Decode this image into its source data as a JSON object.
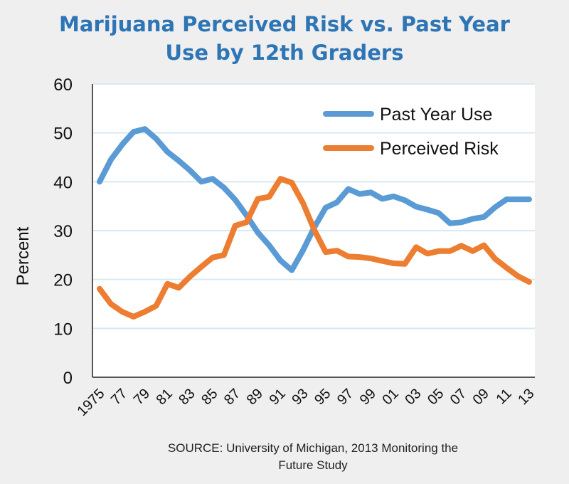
{
  "title": {
    "line1": "Marijuana Perceived Risk vs. Past Year",
    "line2": "Use by 12th Graders"
  },
  "source": {
    "line1": "SOURCE: University of Michigan, 2013 Monitoring the",
    "line2": "Future Study"
  },
  "colors": {
    "past_year_use": "#5b9bd5",
    "perceived_risk": "#ed7d31",
    "title": "#2e75b6",
    "grid": "#d8e9f3"
  },
  "chart_data": {
    "type": "line",
    "title": "Marijuana Perceived Risk vs. Past Year Use by 12th Graders",
    "xlabel": "",
    "ylabel": "Percent",
    "ylim": [
      0,
      60
    ],
    "yticks": [
      0,
      10,
      20,
      30,
      40,
      50,
      60
    ],
    "grid": true,
    "legend_position": "top-right",
    "x": [
      1975,
      1976,
      1977,
      1978,
      1979,
      1980,
      1981,
      1982,
      1983,
      1984,
      1985,
      1986,
      1987,
      1988,
      1989,
      1990,
      1991,
      1992,
      1993,
      1994,
      1995,
      1996,
      1997,
      1998,
      1999,
      2000,
      2001,
      2002,
      2003,
      2004,
      2005,
      2006,
      2007,
      2008,
      2009,
      2010,
      2011,
      2012,
      2013
    ],
    "xtick_labels": [
      "1975",
      "77",
      "79",
      "81",
      "83",
      "85",
      "87",
      "89",
      "91",
      "93",
      "95",
      "97",
      "99",
      "01",
      "03",
      "05",
      "07",
      "09",
      "11",
      "13"
    ],
    "series": [
      {
        "name": "Past Year Use",
        "values": [
          40.0,
          44.5,
          47.6,
          50.2,
          50.8,
          48.8,
          46.1,
          44.3,
          42.3,
          40.0,
          40.6,
          38.8,
          36.3,
          33.1,
          29.6,
          27.0,
          23.9,
          21.9,
          26.0,
          30.7,
          34.7,
          35.8,
          38.5,
          37.5,
          37.8,
          36.5,
          37.0,
          36.2,
          34.9,
          34.3,
          33.6,
          31.5,
          31.7,
          32.4,
          32.8,
          34.8,
          36.4,
          36.4,
          36.4
        ]
      },
      {
        "name": "Perceived Risk",
        "values": [
          18.1,
          15.0,
          13.4,
          12.4,
          13.4,
          14.6,
          19.1,
          18.3,
          20.6,
          22.6,
          24.5,
          25.0,
          31.0,
          31.7,
          36.5,
          36.9,
          40.6,
          39.8,
          35.6,
          30.1,
          25.6,
          25.9,
          24.7,
          24.6,
          24.3,
          23.8,
          23.3,
          23.2,
          26.6,
          25.3,
          25.8,
          25.8,
          26.9,
          25.8,
          27.0,
          24.2,
          22.4,
          20.7,
          19.5
        ]
      }
    ]
  }
}
